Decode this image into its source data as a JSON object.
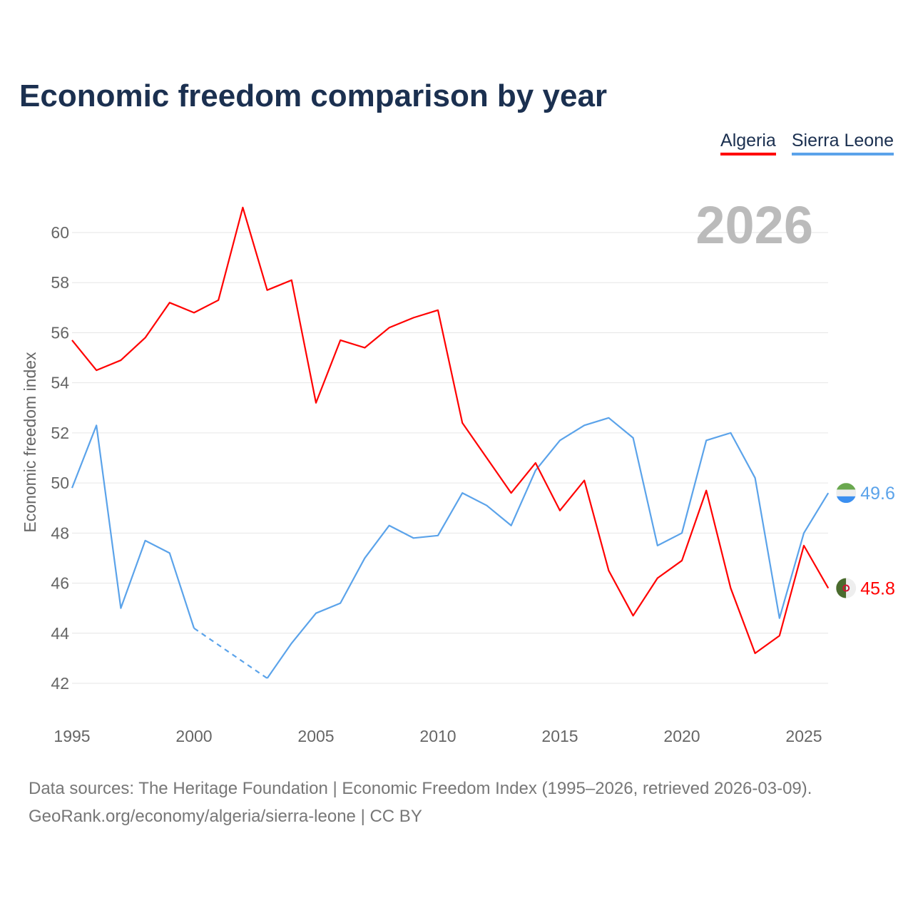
{
  "chart_data": {
    "type": "line",
    "title": "Economic freedom comparison by year",
    "ylabel": "Economic freedom index",
    "xlabel": "",
    "year_label": "2026",
    "ylim": [
      41,
      61
    ],
    "xlim": [
      1995,
      2026
    ],
    "yticks": [
      42,
      44,
      46,
      48,
      50,
      52,
      54,
      56,
      58,
      60
    ],
    "xticks": [
      1995,
      2000,
      2005,
      2010,
      2015,
      2020,
      2025
    ],
    "grid": true,
    "legend_position": "top-right",
    "x": [
      1995,
      1996,
      1997,
      1998,
      1999,
      2000,
      2001,
      2002,
      2003,
      2004,
      2005,
      2006,
      2007,
      2008,
      2009,
      2010,
      2011,
      2012,
      2013,
      2014,
      2015,
      2016,
      2017,
      2018,
      2019,
      2020,
      2021,
      2022,
      2023,
      2024,
      2025,
      2026
    ],
    "series": [
      {
        "name": "Algeria",
        "color": "#ff0000",
        "end_label": "45.8",
        "values": [
          55.7,
          54.5,
          54.9,
          55.8,
          57.2,
          56.8,
          57.3,
          61.0,
          57.7,
          58.1,
          53.2,
          55.7,
          55.4,
          56.2,
          56.6,
          56.9,
          52.4,
          51.0,
          49.6,
          50.8,
          48.9,
          50.1,
          46.5,
          44.7,
          46.2,
          46.9,
          49.7,
          45.8,
          43.2,
          43.9,
          47.5,
          45.8
        ]
      },
      {
        "name": "Sierra Leone",
        "color": "#5ba3ea",
        "end_label": "49.6",
        "values": [
          49.8,
          52.3,
          45.0,
          47.7,
          47.2,
          44.2,
          null,
          null,
          42.2,
          43.6,
          44.8,
          45.2,
          47.0,
          48.3,
          47.8,
          47.9,
          49.6,
          49.1,
          48.3,
          50.5,
          51.7,
          52.3,
          52.6,
          51.8,
          47.5,
          48.0,
          51.7,
          52.0,
          50.2,
          44.6,
          48.0,
          49.6
        ]
      }
    ]
  },
  "source": {
    "line1": "Data sources: The Heritage Foundation | Economic Freedom Index (1995–2026, retrieved 2026-03-09).",
    "line2": "GeoRank.org/economy/algeria/sierra-leone | CC BY"
  }
}
